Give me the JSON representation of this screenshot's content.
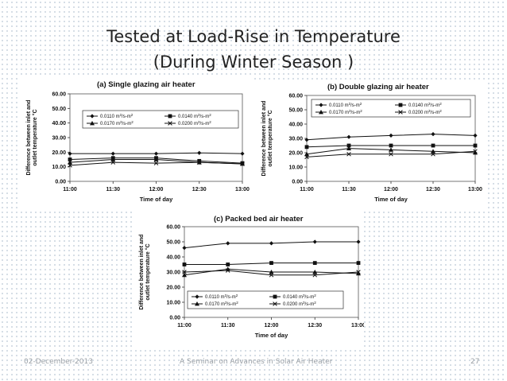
{
  "slide": {
    "title_line1": "Tested at Load-Rise in Temperature",
    "title_line2": "(During Winter Season )",
    "footer_date": "02-December-2013",
    "footer_center": "A Seminar on Advances in Solar Air Heater",
    "footer_page": "27"
  },
  "chart_data": [
    {
      "type": "line",
      "title": "(a) Single glazing air heater",
      "xlabel": "Time of day",
      "ylabel": "Difference between inlet and outlet temperature °C",
      "categories": [
        "11:00",
        "11:30",
        "12:00",
        "12:30",
        "13:00"
      ],
      "yticks": [
        "0.00",
        "10.00",
        "20.00",
        "30.00",
        "40.00",
        "50.00",
        "60.00"
      ],
      "ylim": [
        0,
        60
      ],
      "legend_position": "top",
      "series": [
        {
          "name": "0.0110 m³/s-m²",
          "marker": "diamond",
          "values": [
            19,
            19,
            19,
            19.5,
            19
          ]
        },
        {
          "name": "0.0140 m³/s-m²",
          "marker": "square",
          "values": [
            15,
            16,
            16,
            14,
            12.5
          ]
        },
        {
          "name": "0.0170 m³/s-m²",
          "marker": "triangle",
          "values": [
            13,
            15,
            15,
            13,
            12
          ]
        },
        {
          "name": "0.0200 m³/s-m²",
          "marker": "x",
          "values": [
            11,
            13,
            12.5,
            13,
            12
          ]
        }
      ]
    },
    {
      "type": "line",
      "title": "(b) Double glazing air heater",
      "xlabel": "Time of day",
      "ylabel": "Difference between inlet and outlet temperature °C",
      "categories": [
        "11:00",
        "11:30",
        "12:00",
        "12:30",
        "13:00"
      ],
      "yticks": [
        "0.00",
        "10.00",
        "20.00",
        "30.00",
        "40.00",
        "50.00",
        "60.00"
      ],
      "ylim": [
        0,
        60
      ],
      "legend_position": "top",
      "series": [
        {
          "name": "0.0110 m³/s-m²",
          "marker": "diamond",
          "values": [
            29,
            31,
            32,
            33,
            32
          ]
        },
        {
          "name": "0.0140 m³/s-m²",
          "marker": "square",
          "values": [
            24,
            25,
            25,
            25,
            25
          ]
        },
        {
          "name": "0.0170 m³/s-m²",
          "marker": "triangle",
          "values": [
            19,
            23,
            22,
            21,
            20
          ]
        },
        {
          "name": "0.0200 m³/s-m²",
          "marker": "x",
          "values": [
            17,
            19,
            19,
            19,
            21
          ]
        }
      ]
    },
    {
      "type": "line",
      "title": "(c) Packed bed air heater",
      "xlabel": "Time of day",
      "ylabel": "Difference between inlet and outlet temperature °C",
      "categories": [
        "11:00",
        "11:30",
        "12:00",
        "12:30",
        "13:00"
      ],
      "yticks": [
        "0.00",
        "10.00",
        "20.00",
        "30.00",
        "40.00",
        "50.00",
        "60.00"
      ],
      "ylim": [
        0,
        60
      ],
      "legend_position": "bottom",
      "series": [
        {
          "name": "0.0110 m³/s-m²",
          "marker": "diamond",
          "values": [
            46,
            49,
            49,
            50,
            50
          ]
        },
        {
          "name": "0.0140 m³/s-m²",
          "marker": "square",
          "values": [
            35,
            35,
            36,
            36,
            36
          ]
        },
        {
          "name": "0.0170 m³/s-m²",
          "marker": "triangle",
          "values": [
            28,
            32,
            30,
            30,
            29
          ]
        },
        {
          "name": "0.0200 m³/s-m²",
          "marker": "x",
          "values": [
            30,
            31,
            28,
            28,
            30
          ]
        }
      ]
    }
  ]
}
